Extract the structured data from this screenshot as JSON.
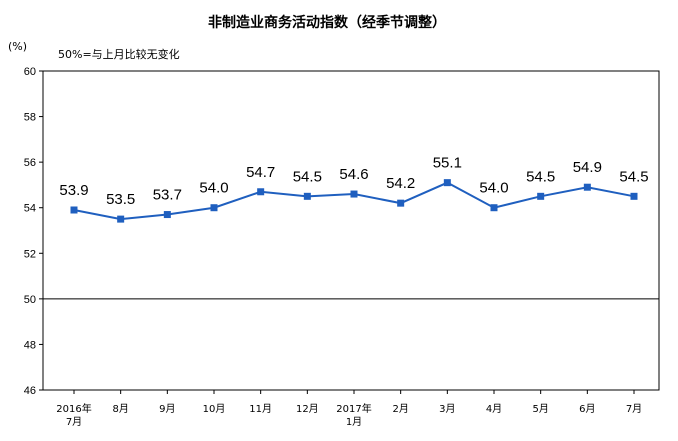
{
  "chart_data": {
    "type": "line",
    "title": "非制造业商务活动指数（经季节调整）",
    "unit_label": "(%)",
    "annotation": "50%=与上月比较无变化",
    "categories": [
      [
        "2016年",
        "7月"
      ],
      [
        "8月"
      ],
      [
        "9月"
      ],
      [
        "10月"
      ],
      [
        "11月"
      ],
      [
        "12月"
      ],
      [
        "2017年",
        "1月"
      ],
      [
        "2月"
      ],
      [
        "3月"
      ],
      [
        "4月"
      ],
      [
        "5月"
      ],
      [
        "6月"
      ],
      [
        "7月"
      ]
    ],
    "series": [
      {
        "values": [
          53.9,
          53.5,
          53.7,
          54.0,
          54.7,
          54.5,
          54.6,
          54.2,
          55.1,
          54.0,
          54.5,
          54.9,
          54.5
        ],
        "labels": [
          "53.9",
          "53.5",
          "53.7",
          "54.0",
          "54.7",
          "54.5",
          "54.6",
          "54.2",
          "55.1",
          "54.0",
          "54.5",
          "54.9",
          "54.5"
        ],
        "color": "#1f5fbf"
      }
    ],
    "ylim": [
      46,
      60
    ],
    "yticks": [
      46,
      48,
      50,
      52,
      54,
      56,
      58,
      60
    ],
    "reference_line": 50,
    "grid": false,
    "legend": "none"
  }
}
